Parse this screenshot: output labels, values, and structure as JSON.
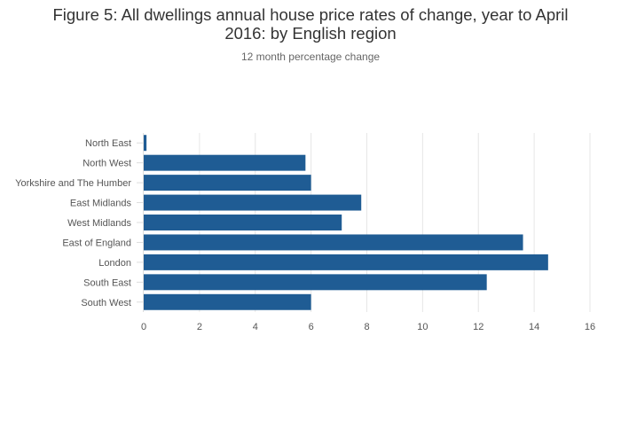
{
  "title": "Figure 5: All dwellings annual house price rates of change, year to April 2016: by English region",
  "subtitle": "12 month percentage change",
  "chart_data": {
    "type": "bar",
    "orientation": "horizontal",
    "title": "Figure 5: All dwellings annual house price rates of change, year to April 2016: by English region",
    "subtitle": "12 month percentage change",
    "xlabel": "",
    "ylabel": "",
    "categories": [
      "North East",
      "North West",
      "Yorkshire and The Humber",
      "East Midlands",
      "West Midlands",
      "East of England",
      "London",
      "South East",
      "South West"
    ],
    "values": [
      0.1,
      5.8,
      6.0,
      7.8,
      7.1,
      13.6,
      14.5,
      12.3,
      6.0
    ],
    "xlim": [
      0,
      16
    ],
    "xticks": [
      0,
      2,
      4,
      6,
      8,
      10,
      12,
      14,
      16
    ],
    "grid": "vertical",
    "legend": "none",
    "bar_color": "#1f5c94"
  }
}
